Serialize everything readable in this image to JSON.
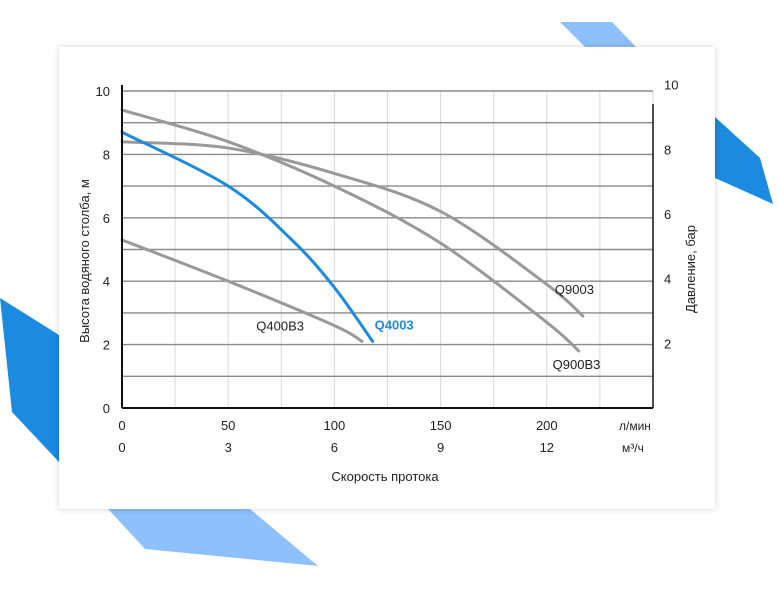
{
  "chart_data": {
    "type": "line",
    "xlabel": "Скорость протока",
    "x_unit_primary": "л/мин",
    "x_unit_secondary": "м³/ч",
    "ylabel_left": "Высота водяного столба, м",
    "ylabel_right": "Давление, бар",
    "xlim": [
      0,
      250
    ],
    "ylim": [
      0,
      10
    ],
    "x_ticks_primary": [
      "0",
      "50",
      "100",
      "150",
      "200"
    ],
    "x_ticks_secondary": [
      "0",
      "3",
      "6",
      "9",
      "12"
    ],
    "y_ticks_left": [
      "0",
      "2",
      "4",
      "6",
      "8",
      "10"
    ],
    "y_ticks_right": [
      "2",
      "4",
      "6",
      "8",
      "10"
    ],
    "grid": true,
    "highlight_color": "#1a8be0",
    "series_color": "#999999",
    "series": [
      {
        "name": "Q9003",
        "highlight": false,
        "x": [
          0,
          50,
          100,
          150,
          200,
          217
        ],
        "y": [
          8.4,
          8.2,
          7.4,
          6.2,
          3.9,
          2.9
        ]
      },
      {
        "name": "Q900B3",
        "highlight": false,
        "x": [
          0,
          50,
          100,
          150,
          200,
          215
        ],
        "y": [
          9.4,
          8.4,
          7.0,
          5.2,
          2.7,
          1.8
        ]
      },
      {
        "name": "Q4003",
        "highlight": true,
        "x": [
          0,
          50,
          80,
          100,
          118
        ],
        "y": [
          8.7,
          7.0,
          5.3,
          3.8,
          2.1
        ]
      },
      {
        "name": "Q400B3",
        "highlight": false,
        "x": [
          0,
          50,
          100,
          113
        ],
        "y": [
          5.3,
          4.0,
          2.6,
          2.1
        ]
      }
    ]
  }
}
